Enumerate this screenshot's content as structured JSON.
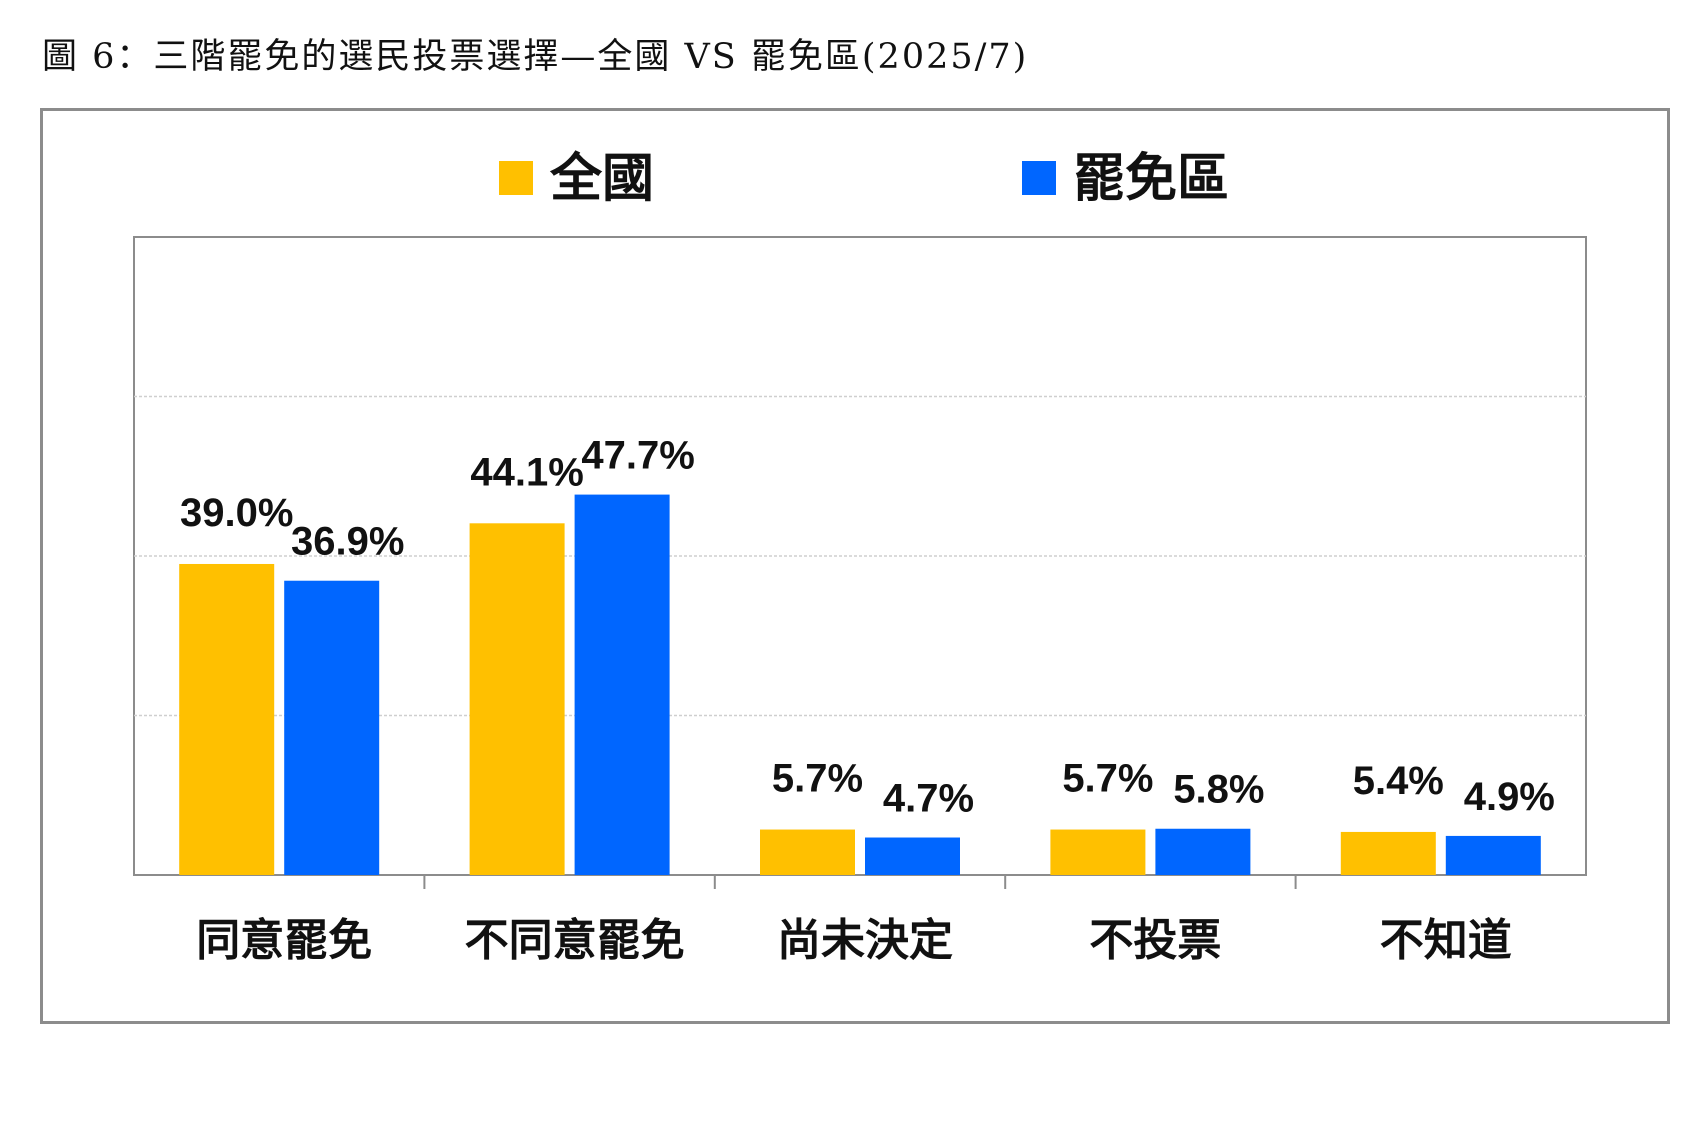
{
  "figure_title": "圖 6：三階罷免的選民投票選擇—全國 VS 罷免區(2025/7)",
  "chart_data": {
    "type": "bar",
    "categories": [
      "同意罷免",
      "不同意罷免",
      "尚未決定",
      "不投票",
      "不知道"
    ],
    "series": [
      {
        "name": "全國",
        "color": "#FFC000",
        "values": [
          39.0,
          44.1,
          5.7,
          5.7,
          5.4
        ],
        "labels": [
          "39.0%",
          "44.1%",
          "5.7%",
          "5.7%",
          "5.4%"
        ]
      },
      {
        "name": "罷免區",
        "color": "#0066FF",
        "values": [
          36.9,
          47.7,
          4.7,
          5.8,
          4.9
        ],
        "labels": [
          "36.9%",
          "47.7%",
          "4.7%",
          "5.8%",
          "4.9%"
        ]
      }
    ],
    "ylim": [
      0,
      80
    ],
    "gridlines": [
      20,
      40,
      60
    ],
    "grid": true,
    "legend_position": "top",
    "title": "",
    "xlabel": "",
    "ylabel": ""
  }
}
